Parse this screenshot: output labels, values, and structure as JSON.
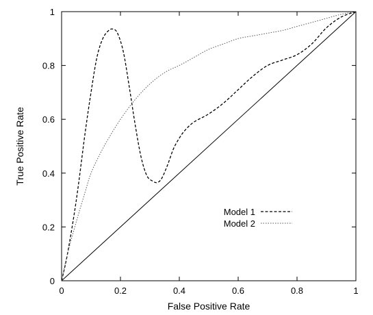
{
  "chart_data": {
    "type": "line",
    "title": "",
    "xlabel": "False Positive Rate",
    "ylabel": "True Positive Rate",
    "xlim": [
      0,
      1
    ],
    "ylim": [
      0,
      1
    ],
    "x_ticks": [
      0,
      0.2,
      0.4,
      0.6,
      0.8,
      1
    ],
    "x_tick_labels": [
      "0",
      "0.2",
      "0.4",
      "0.6",
      "0.8",
      "1"
    ],
    "y_ticks": [
      0,
      0.2,
      0.4,
      0.6,
      0.8,
      1
    ],
    "y_tick_labels": [
      "0",
      "0.2",
      "0.4",
      "0.6",
      "0.8",
      "1"
    ],
    "grid": false,
    "legend_position": "lower-right",
    "series": [
      {
        "name": "Model 1",
        "style": "dashed",
        "x": [
          0,
          0.02,
          0.05,
          0.08,
          0.1,
          0.12,
          0.14,
          0.16,
          0.175,
          0.19,
          0.21,
          0.23,
          0.25,
          0.27,
          0.29,
          0.31,
          0.325,
          0.34,
          0.36,
          0.38,
          0.4,
          0.42,
          0.45,
          0.5,
          0.55,
          0.6,
          0.65,
          0.7,
          0.75,
          0.8,
          0.85,
          0.9,
          0.95,
          1
        ],
        "y": [
          0,
          0.1,
          0.3,
          0.55,
          0.7,
          0.83,
          0.9,
          0.93,
          0.935,
          0.92,
          0.85,
          0.72,
          0.58,
          0.46,
          0.39,
          0.37,
          0.365,
          0.38,
          0.43,
          0.49,
          0.53,
          0.56,
          0.59,
          0.62,
          0.66,
          0.71,
          0.76,
          0.8,
          0.82,
          0.84,
          0.88,
          0.94,
          0.98,
          1
        ]
      },
      {
        "name": "Model 2",
        "style": "dotted",
        "x": [
          0,
          0.02,
          0.05,
          0.08,
          0.1,
          0.13,
          0.16,
          0.2,
          0.24,
          0.28,
          0.32,
          0.36,
          0.4,
          0.45,
          0.5,
          0.55,
          0.6,
          0.65,
          0.7,
          0.75,
          0.8,
          0.85,
          0.9,
          0.95,
          1
        ],
        "y": [
          0,
          0.1,
          0.22,
          0.33,
          0.4,
          0.47,
          0.53,
          0.6,
          0.66,
          0.71,
          0.75,
          0.78,
          0.8,
          0.83,
          0.86,
          0.88,
          0.9,
          0.91,
          0.92,
          0.93,
          0.945,
          0.96,
          0.975,
          0.99,
          1
        ]
      }
    ],
    "reference_line": {
      "x": [
        0,
        1
      ],
      "y": [
        0,
        1
      ],
      "style": "solid"
    }
  }
}
